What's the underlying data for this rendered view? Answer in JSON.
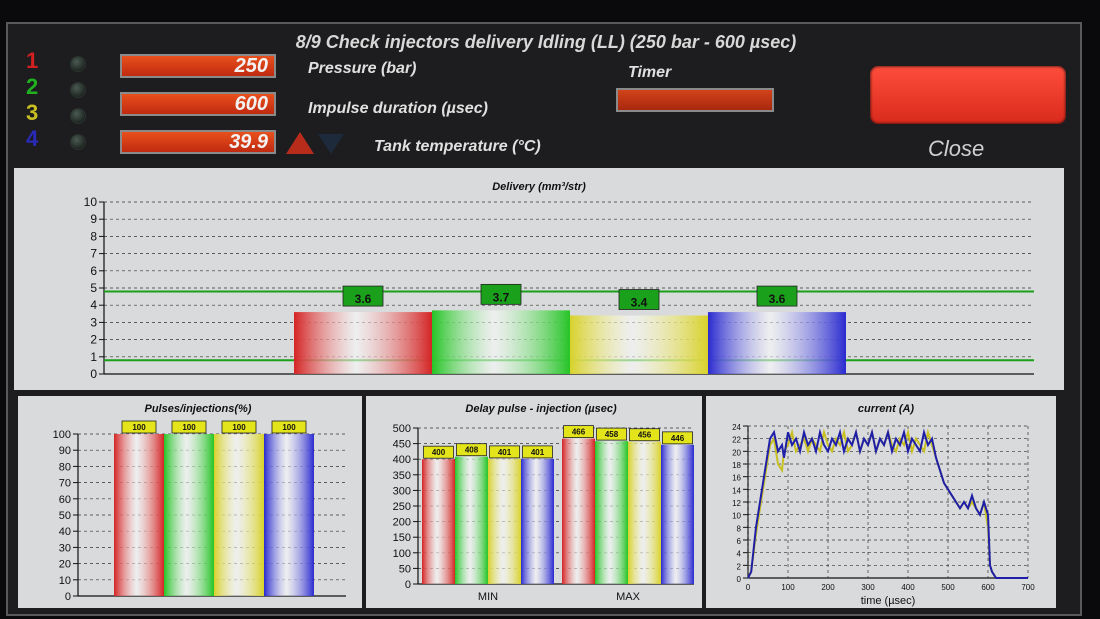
{
  "header": {
    "title": "8/9 Check  injectors delivery Idling (LL) (250 bar - 600 µsec)",
    "injectors": [
      {
        "num": "1",
        "color": "#d02020"
      },
      {
        "num": "2",
        "color": "#20b020"
      },
      {
        "num": "3",
        "color": "#c8c020"
      },
      {
        "num": "4",
        "color": "#2a2ab8"
      }
    ],
    "fields": [
      {
        "value": "250",
        "label": "Pressure (bar)"
      },
      {
        "value": "600",
        "label": "Impulse duration (µsec)"
      },
      {
        "value": "39.9",
        "label": "Tank temperature (°C)"
      }
    ],
    "timer_label": "Timer",
    "close_label": "Close"
  },
  "colors": {
    "red": "#d42424",
    "green": "#26c426",
    "yellow": "#d8d22a",
    "blue": "#2a2ad0",
    "limit": "#1aa01a",
    "label_bg": "#e4e41a"
  },
  "chart_data": [
    {
      "type": "bar",
      "title": "Delivery (mm³/str)",
      "categories": [
        "1",
        "2",
        "3",
        "4"
      ],
      "values": [
        3.6,
        3.7,
        3.4,
        3.6
      ],
      "ylim": [
        0,
        10
      ],
      "yticks": [
        "0",
        "1",
        "2",
        "3",
        "4",
        "5",
        "6",
        "7",
        "8",
        "9",
        "10"
      ],
      "limits": {
        "upper": 4.8,
        "lower": 0.8
      },
      "grid": true
    },
    {
      "type": "bar",
      "title": "Pulses/injections(%)",
      "categories": [
        "1",
        "2",
        "3",
        "4"
      ],
      "values": [
        100,
        100,
        100,
        100
      ],
      "ylim": [
        0,
        100
      ],
      "yticks": [
        "0",
        "10",
        "20",
        "30",
        "40",
        "50",
        "60",
        "70",
        "80",
        "90",
        "100"
      ],
      "grid": true
    },
    {
      "type": "bar",
      "title": "Delay pulse - injection (µsec)",
      "categories": [
        "MIN",
        "MAX"
      ],
      "series": [
        {
          "values": [
            400,
            466
          ]
        },
        {
          "values": [
            408,
            458
          ]
        },
        {
          "values": [
            401,
            456
          ]
        },
        {
          "values": [
            401,
            446
          ]
        }
      ],
      "ylim": [
        0,
        500
      ],
      "yticks": [
        "0",
        "50",
        "100",
        "150",
        "200",
        "250",
        "300",
        "350",
        "400",
        "450",
        "500"
      ],
      "grid": true
    },
    {
      "type": "line",
      "title": "current (A)",
      "xlabel": "time (µsec)",
      "xlim": [
        0,
        700
      ],
      "ylim": [
        0,
        24
      ],
      "xticks": [
        "0",
        "100",
        "200",
        "300",
        "400",
        "500",
        "600",
        "700"
      ],
      "yticks": [
        "0",
        "2",
        "4",
        "6",
        "8",
        "10",
        "12",
        "14",
        "16",
        "18",
        "20",
        "22",
        "24"
      ],
      "grid": true,
      "series": [
        {
          "color": "#c8c020",
          "x": [
            0,
            8,
            20,
            40,
            55,
            65,
            75,
            85,
            90,
            100,
            110,
            120,
            130,
            140,
            150,
            160,
            170,
            180,
            190,
            200,
            210,
            220,
            230,
            240,
            250,
            260,
            270,
            280,
            290,
            300,
            310,
            320,
            330,
            340,
            350,
            360,
            370,
            380,
            390,
            400,
            410,
            420,
            430,
            440,
            450,
            460,
            470,
            480,
            490,
            500,
            510,
            520,
            530,
            540,
            550,
            560,
            570,
            580,
            590,
            600,
            605,
            610,
            620,
            700
          ],
          "y": [
            0,
            1,
            7,
            15,
            21,
            22,
            18,
            17,
            20,
            21,
            23,
            20,
            21,
            22,
            20,
            22,
            21,
            20,
            23,
            21,
            20,
            22,
            21,
            23,
            20,
            21,
            23,
            20,
            22,
            21,
            23,
            20,
            22,
            21,
            23,
            21,
            20,
            22,
            21,
            23,
            20,
            22,
            21,
            20,
            23,
            21,
            19,
            17,
            15,
            14,
            13,
            12,
            11,
            12,
            11,
            12,
            11,
            10,
            12,
            8,
            2,
            1,
            0,
            0
          ]
        },
        {
          "color": "#1e1ea8",
          "x": [
            0,
            8,
            20,
            40,
            55,
            65,
            75,
            85,
            90,
            100,
            110,
            120,
            130,
            140,
            150,
            160,
            170,
            180,
            190,
            200,
            210,
            220,
            230,
            240,
            250,
            260,
            270,
            280,
            290,
            300,
            310,
            320,
            330,
            340,
            350,
            360,
            370,
            380,
            390,
            400,
            410,
            420,
            430,
            440,
            450,
            460,
            470,
            480,
            490,
            500,
            510,
            520,
            530,
            540,
            550,
            560,
            570,
            580,
            590,
            600,
            605,
            610,
            620,
            700
          ],
          "y": [
            0,
            1,
            8,
            16,
            22,
            23,
            20,
            21,
            19,
            23,
            21,
            22,
            20,
            23,
            21,
            22,
            20,
            23,
            21,
            20,
            22,
            21,
            23,
            20,
            22,
            21,
            23,
            20,
            22,
            21,
            23,
            20,
            22,
            21,
            23,
            20,
            22,
            21,
            23,
            20,
            22,
            21,
            20,
            23,
            21,
            22,
            19,
            17,
            15,
            14,
            13,
            12,
            11,
            12,
            11,
            13,
            11,
            10,
            12,
            10,
            2,
            1,
            0,
            0
          ]
        }
      ]
    }
  ]
}
